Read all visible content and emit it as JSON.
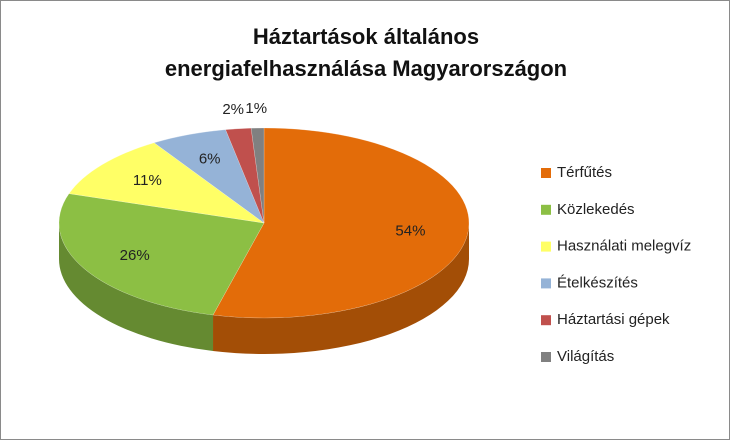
{
  "chart_data": {
    "type": "pie",
    "title": "Háztartások általános energiafelhasználása Magyarországon",
    "categories": [
      "Térfűtés",
      "Közlekedés",
      "Használati melegvíz",
      "Ételkészítés",
      "Háztartási gépek",
      "Világítás"
    ],
    "values": [
      54,
      26,
      11,
      6,
      2,
      1
    ],
    "value_labels": [
      "54%",
      "26%",
      "11%",
      "6%",
      "2%",
      "1%"
    ],
    "colors": [
      "#e36c09",
      "#8cbf44",
      "#ffff66",
      "#95b3d7",
      "#c0504d",
      "#808080"
    ],
    "legend": "right"
  }
}
